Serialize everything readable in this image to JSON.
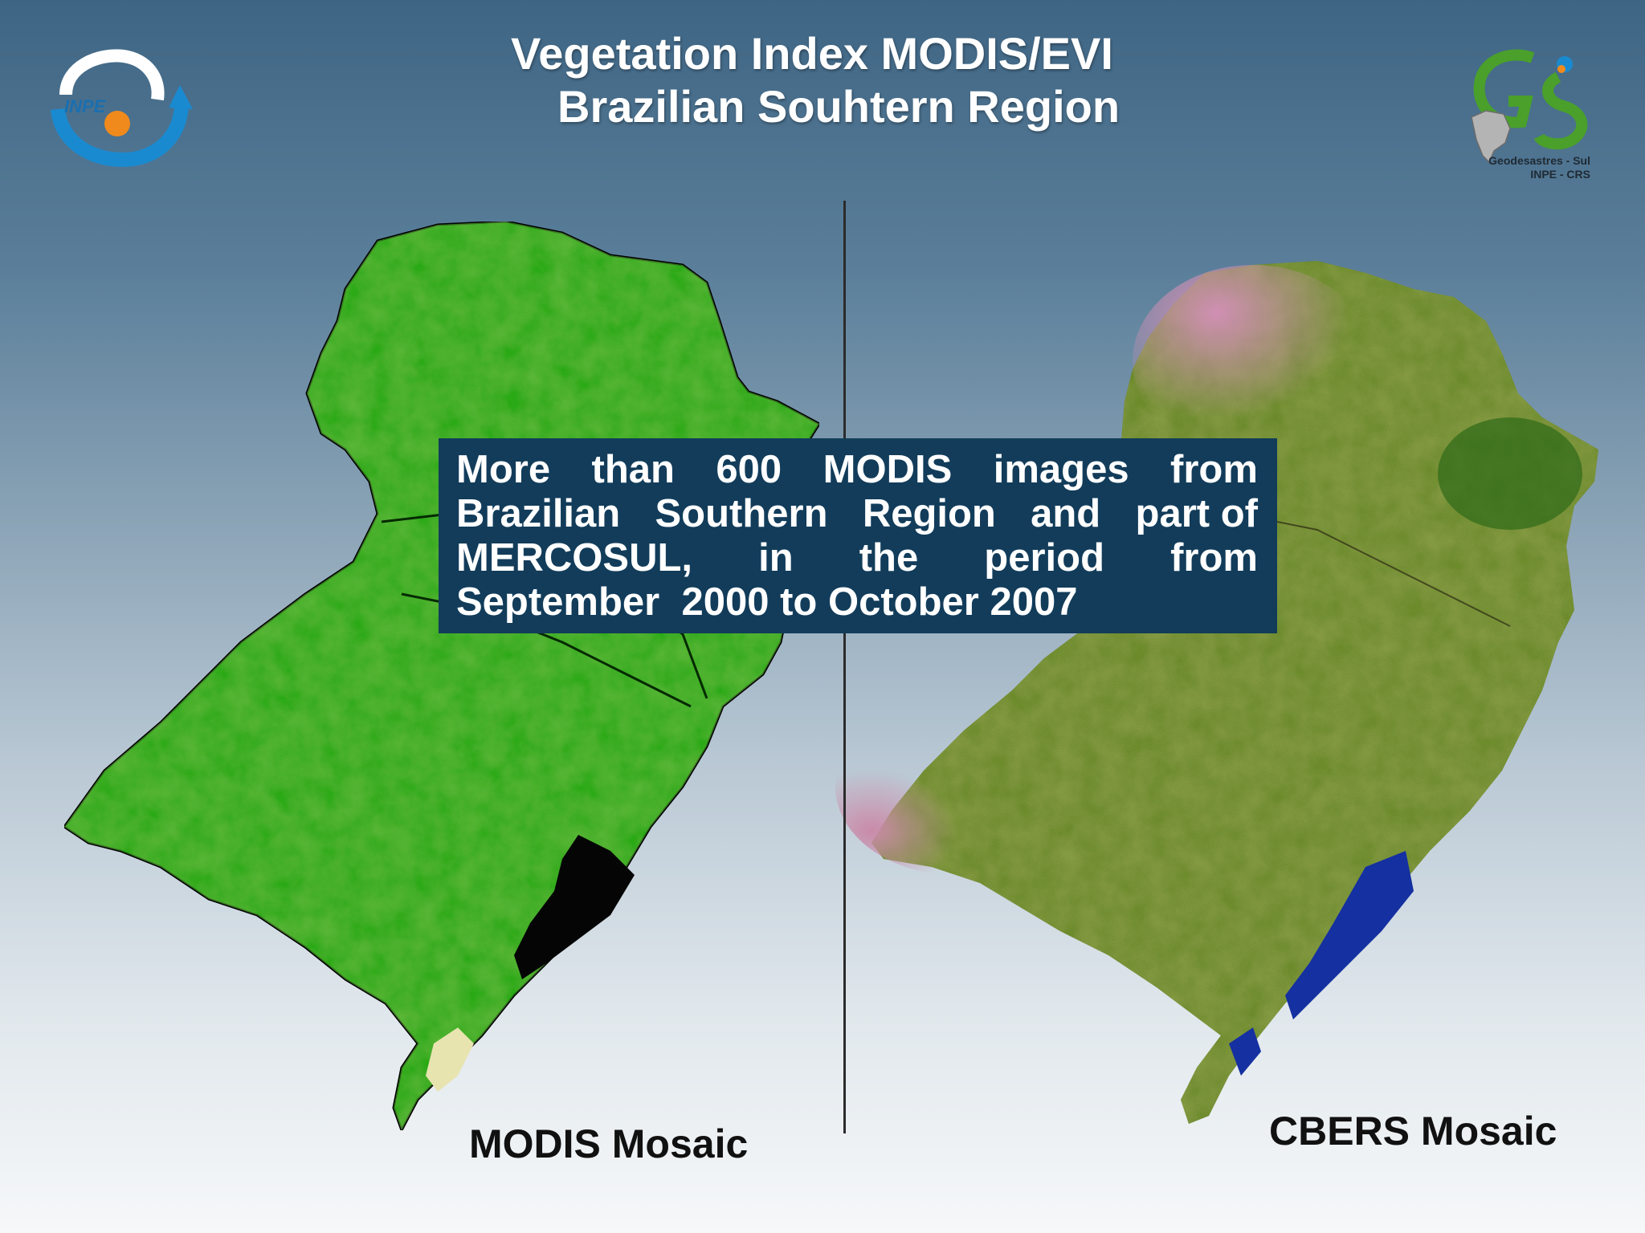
{
  "title": {
    "line1": "Vegetation Index MODIS/EVI",
    "line2": "Brazilian Souhtern Region"
  },
  "logos": {
    "left": {
      "text": "INPE",
      "icon": "inpe-logo"
    },
    "right": {
      "icon": "geodesastres-logo",
      "caption_line1": "Geodesastres - Sul",
      "caption_line2": "INPE - CRS"
    }
  },
  "info_box": {
    "lines": [
      [
        "More",
        "than",
        "600",
        "MODIS",
        "images",
        "from"
      ],
      [
        "Brazilian",
        "Southern",
        "Region",
        "and",
        "part of"
      ],
      [
        "MERCOSUL,",
        "in",
        "the",
        "period",
        "from"
      ],
      [
        "September  2000 to October 2007"
      ]
    ]
  },
  "captions": {
    "left": "MODIS Mosaic",
    "right": "CBERS Mosaic"
  },
  "colors": {
    "info_box_bg": "#123c5a",
    "modis_green": "#1f9a14",
    "cbers_olive": "#7f7a35",
    "cbers_pink": "#c58aa6",
    "water_black": "#050505",
    "water_blue": "#1530a0"
  }
}
